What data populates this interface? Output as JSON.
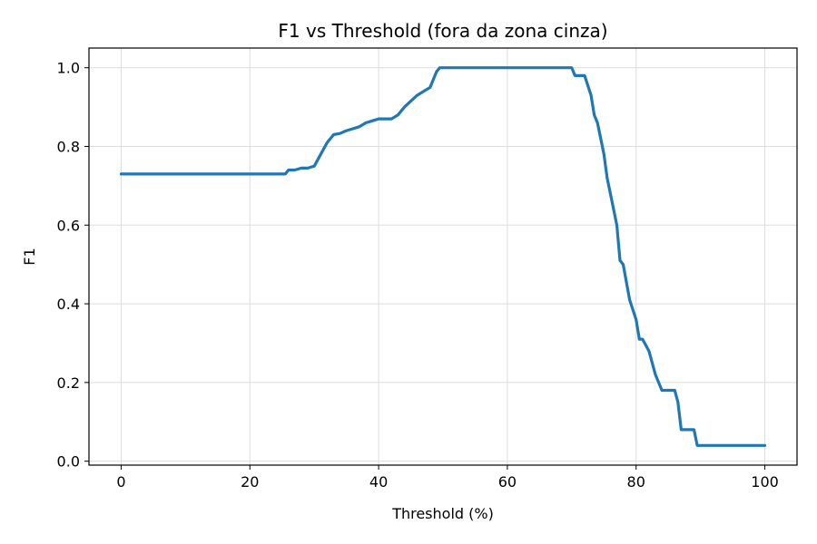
{
  "chart_data": {
    "type": "line",
    "title": "F1 vs Threshold (fora da zona cinza)",
    "xlabel": "Threshold (%)",
    "ylabel": "F1",
    "xlim": [
      -5,
      105
    ],
    "ylim": [
      -0.01,
      1.05
    ],
    "xticks": [
      0,
      20,
      40,
      60,
      80,
      100
    ],
    "yticks": [
      0.0,
      0.2,
      0.4,
      0.6,
      0.8,
      1.0
    ],
    "xtick_labels": [
      "0",
      "20",
      "40",
      "60",
      "80",
      "100"
    ],
    "ytick_labels": [
      "0.0",
      "0.2",
      "0.4",
      "0.6",
      "0.8",
      "1.0"
    ],
    "grid": true,
    "line_color": "#1f77b4",
    "series": [
      {
        "x": [
          0,
          25.5,
          26,
          27,
          28,
          29,
          30,
          31,
          32,
          33,
          34,
          35,
          36,
          37,
          38,
          39,
          40,
          41,
          42,
          43,
          44,
          45,
          46,
          47,
          48,
          49,
          49.5,
          50,
          60,
          70,
          70.5,
          72,
          73,
          73.5,
          74,
          75,
          75.5,
          76,
          77,
          77.5,
          78,
          79,
          80,
          80.5,
          81,
          82,
          83,
          84,
          85,
          86,
          86.5,
          87,
          88,
          89,
          89.5,
          90,
          95,
          100
        ],
        "y": [
          0.73,
          0.73,
          0.74,
          0.74,
          0.745,
          0.745,
          0.75,
          0.78,
          0.81,
          0.83,
          0.833,
          0.84,
          0.845,
          0.85,
          0.86,
          0.865,
          0.87,
          0.87,
          0.87,
          0.88,
          0.9,
          0.915,
          0.93,
          0.94,
          0.95,
          0.99,
          1.0,
          1.0,
          1.0,
          1.0,
          0.98,
          0.98,
          0.93,
          0.88,
          0.86,
          0.78,
          0.72,
          0.68,
          0.6,
          0.51,
          0.5,
          0.41,
          0.36,
          0.31,
          0.31,
          0.28,
          0.22,
          0.18,
          0.18,
          0.18,
          0.15,
          0.08,
          0.08,
          0.08,
          0.04,
          0.04,
          0.04,
          0.04
        ]
      }
    ]
  }
}
